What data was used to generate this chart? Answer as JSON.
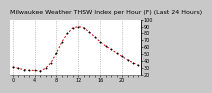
{
  "title": "Milwaukee Weather THSW Index per Hour (F) (Last 24 Hours)",
  "x_values": [
    0,
    1,
    2,
    3,
    4,
    5,
    6,
    7,
    8,
    9,
    10,
    11,
    12,
    13,
    14,
    15,
    16,
    17,
    18,
    19,
    20,
    21,
    22,
    23
  ],
  "y_values": [
    32,
    30,
    28,
    27,
    27,
    26,
    30,
    38,
    52,
    68,
    80,
    88,
    90,
    88,
    82,
    75,
    68,
    62,
    57,
    52,
    47,
    42,
    38,
    34
  ],
  "line_color": "#cc0000",
  "marker_color": "#000000",
  "bg_color": "#c8c8c8",
  "plot_bg_color": "#ffffff",
  "grid_color": "#999999",
  "ylim": [
    20,
    100
  ],
  "yticks": [
    20,
    30,
    40,
    50,
    60,
    70,
    80,
    90,
    100
  ],
  "ytick_labels": [
    "20",
    "30",
    "40",
    "50",
    "60",
    "70",
    "80",
    "90",
    "100"
  ],
  "title_fontsize": 4.5,
  "tick_fontsize": 3.5
}
